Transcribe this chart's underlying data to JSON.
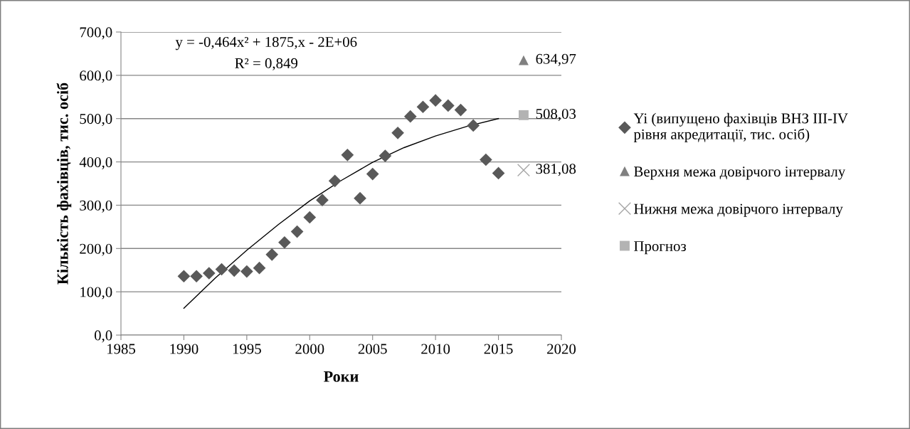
{
  "chart_data": {
    "type": "scatter",
    "xlabel": "Роки",
    "ylabel": "Кількість фахівців, тис. осіб",
    "xlim": [
      1985,
      2020
    ],
    "xticks": [
      1985,
      1990,
      1995,
      2000,
      2005,
      2010,
      2015,
      2020
    ],
    "ylim": [
      0,
      700
    ],
    "yticks": [
      {
        "value": 0,
        "label": "0,0"
      },
      {
        "value": 100,
        "label": "100,0"
      },
      {
        "value": 200,
        "label": "200,0"
      },
      {
        "value": 300,
        "label": "300,0"
      },
      {
        "value": 400,
        "label": "400,0"
      },
      {
        "value": 500,
        "label": "500,0"
      },
      {
        "value": 600,
        "label": "600,0"
      },
      {
        "value": 700,
        "label": "700,0"
      }
    ],
    "grid": "y",
    "legend": "right",
    "annotations": [
      "y = -0,464x² + 1875,x - 2E+06",
      "R² = 0,849"
    ],
    "series": [
      {
        "name": "Yi (випущено фахівців ВНЗ III-IV\nрівня акредитації, тис. осіб)",
        "color": "#595959",
        "marker": "diamond",
        "x": [
          1990,
          1991,
          1992,
          1993,
          1994,
          1995,
          1996,
          1997,
          1998,
          1999,
          2000,
          2001,
          2002,
          2003,
          2004,
          2005,
          2006,
          2007,
          2008,
          2009,
          2010,
          2011,
          2012,
          2013,
          2014,
          2015
        ],
        "values": [
          136,
          136,
          143,
          152,
          149,
          147,
          155,
          186,
          214,
          239,
          272,
          312,
          356,
          416,
          316,
          372,
          414,
          467,
          505,
          527,
          542,
          530,
          520,
          484,
          405,
          374
        ]
      },
      {
        "name": "Верхня межа довірчого інтервалу",
        "color": "#808080",
        "marker": "triangle",
        "x": [
          2017
        ],
        "values": [
          634.97
        ],
        "value_labels": [
          "634,97"
        ]
      },
      {
        "name": "Нижня межа довірчого інтервалу",
        "color": "#a6a6a6",
        "marker": "cross",
        "x": [
          2017
        ],
        "values": [
          381.08
        ],
        "value_labels": [
          "381,08"
        ]
      },
      {
        "name": "Прогноз",
        "color": "#b3b3b3",
        "marker": "square",
        "x": [
          2017
        ],
        "values": [
          508.03
        ],
        "value_labels": [
          "508,03"
        ]
      },
      {
        "type": "line",
        "color": "#000000",
        "line_style": "solid",
        "x": [
          1990,
          1992.5,
          1995,
          1997.5,
          2000,
          2002.5,
          2005,
          2007.5,
          2010,
          2012.5,
          2015
        ],
        "values": [
          62,
          132,
          196,
          255,
          310,
          357,
          399,
          433,
          460,
          482,
          500
        ]
      }
    ]
  }
}
